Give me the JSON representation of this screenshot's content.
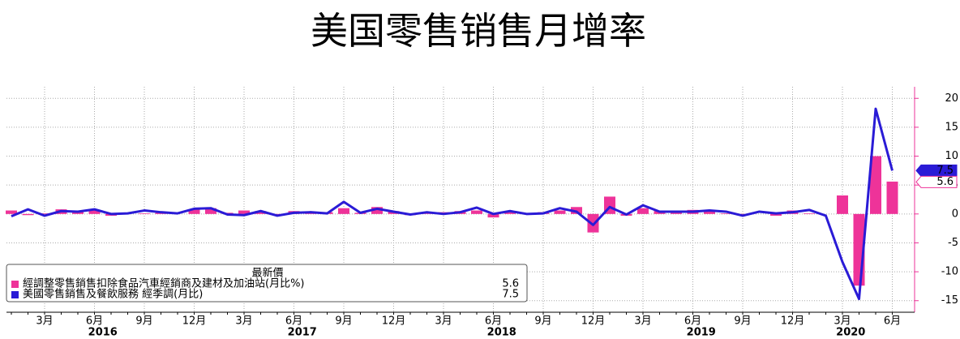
{
  "chart_data": {
    "type": "bar-line",
    "title": "美国零售销售月增率",
    "categories": [
      null,
      null,
      "3月",
      null,
      null,
      "6月",
      null,
      null,
      "9月",
      null,
      null,
      "12月",
      null,
      null,
      "3月",
      null,
      null,
      "6月",
      null,
      null,
      "9月",
      null,
      null,
      "12月",
      null,
      null,
      "3月",
      null,
      null,
      "6月",
      null,
      null,
      "9月",
      null,
      null,
      "12月",
      null,
      null,
      "3月",
      null,
      null,
      "6月",
      null,
      null,
      "9月",
      null,
      null,
      "12月",
      null,
      null,
      "3月",
      null,
      null,
      "6月"
    ],
    "years": [
      "2016",
      "2017",
      "2018",
      "2019",
      "2020"
    ],
    "legend_title": "最新價",
    "series": [
      {
        "name": "經調整零售銷售扣除食品汽車經銷商及建材及加油站(月比%)",
        "type": "bar",
        "color": "#ee3399",
        "values": [
          0.6,
          -0.2,
          0.1,
          0.8,
          0.4,
          0.6,
          -0.3,
          0.0,
          0.1,
          0.2,
          0.0,
          0.8,
          1.0,
          0.2,
          0.6,
          0.5,
          -0.1,
          0.5,
          0.4,
          0.3,
          1.0,
          0.2,
          1.2,
          0.5,
          -0.2,
          0.2,
          0.3,
          0.5,
          0.6,
          -0.6,
          0.4,
          0.1,
          0.3,
          0.6,
          1.2,
          -3.2,
          3.0,
          -0.3,
          1.0,
          0.5,
          0.5,
          0.7,
          0.6,
          0.1,
          -0.1,
          0.0,
          -0.3,
          0.6,
          0.1,
          0.0,
          3.2,
          -12.4,
          10.0,
          5.6
        ]
      },
      {
        "name": "美國零售銷售及餐飲服務 經季調(月比)",
        "type": "line",
        "color": "#2a1bd6",
        "values": [
          -0.4,
          0.8,
          -0.3,
          0.5,
          0.4,
          0.8,
          0.0,
          0.1,
          0.6,
          0.3,
          0.1,
          0.9,
          1.0,
          -0.1,
          -0.2,
          0.5,
          -0.3,
          0.2,
          0.3,
          0.1,
          2.1,
          0.2,
          0.9,
          0.4,
          -0.1,
          0.3,
          0.0,
          0.3,
          1.1,
          0.0,
          0.5,
          0.0,
          0.1,
          1.0,
          0.4,
          -1.9,
          1.2,
          -0.1,
          1.5,
          0.4,
          0.4,
          0.4,
          0.6,
          0.4,
          -0.3,
          0.4,
          0.1,
          0.3,
          0.7,
          -0.3,
          -8.3,
          -14.7,
          18.2,
          7.5
        ]
      }
    ],
    "ylim": [
      -17,
      22
    ],
    "yticks": [
      -15,
      -10,
      -5,
      0,
      5,
      10,
      15,
      20
    ],
    "grid": true
  }
}
